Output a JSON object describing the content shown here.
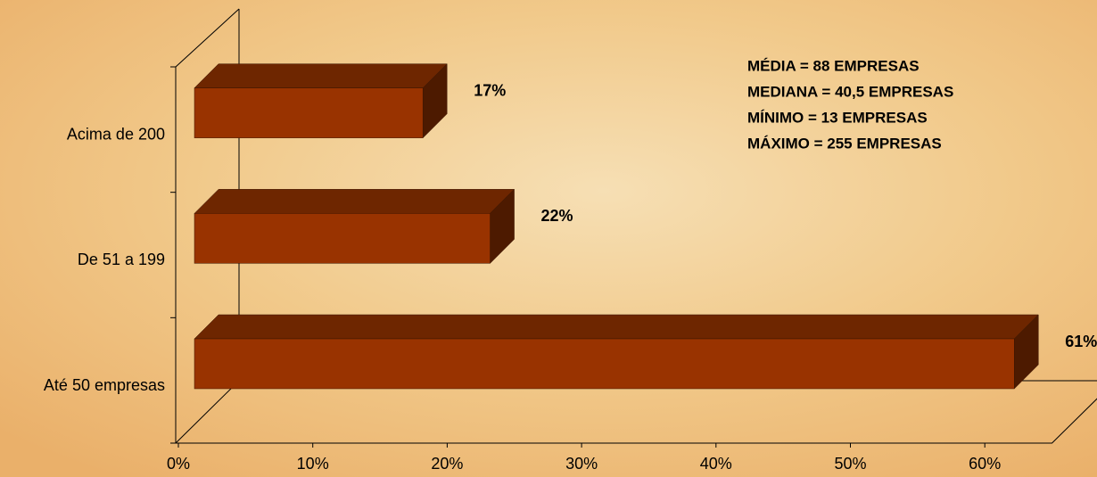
{
  "chart_data": {
    "type": "bar3d-horizontal",
    "categories": [
      "Até 50 empresas",
      "De 51 a 199",
      "Acima de 200"
    ],
    "values": [
      61,
      22,
      17
    ],
    "value_labels": [
      "61%",
      "22%",
      "17%"
    ],
    "color": "#993300",
    "xlim": [
      0,
      65
    ],
    "xticks": [
      {
        "value": 0,
        "label": "0%"
      },
      {
        "value": 10,
        "label": "10%"
      },
      {
        "value": 20,
        "label": "20%"
      },
      {
        "value": 30,
        "label": "30%"
      },
      {
        "value": 40,
        "label": "40%"
      },
      {
        "value": 50,
        "label": "50%"
      },
      {
        "value": 60,
        "label": "60%"
      }
    ],
    "grid": false,
    "annotations": [
      "MÉDIA = 88 EMPRESAS",
      "MEDIANA = 40,5 EMPRESAS",
      "MÍNIMO = 13 EMPRESAS",
      "MÁXIMO = 255 EMPRESAS"
    ]
  }
}
